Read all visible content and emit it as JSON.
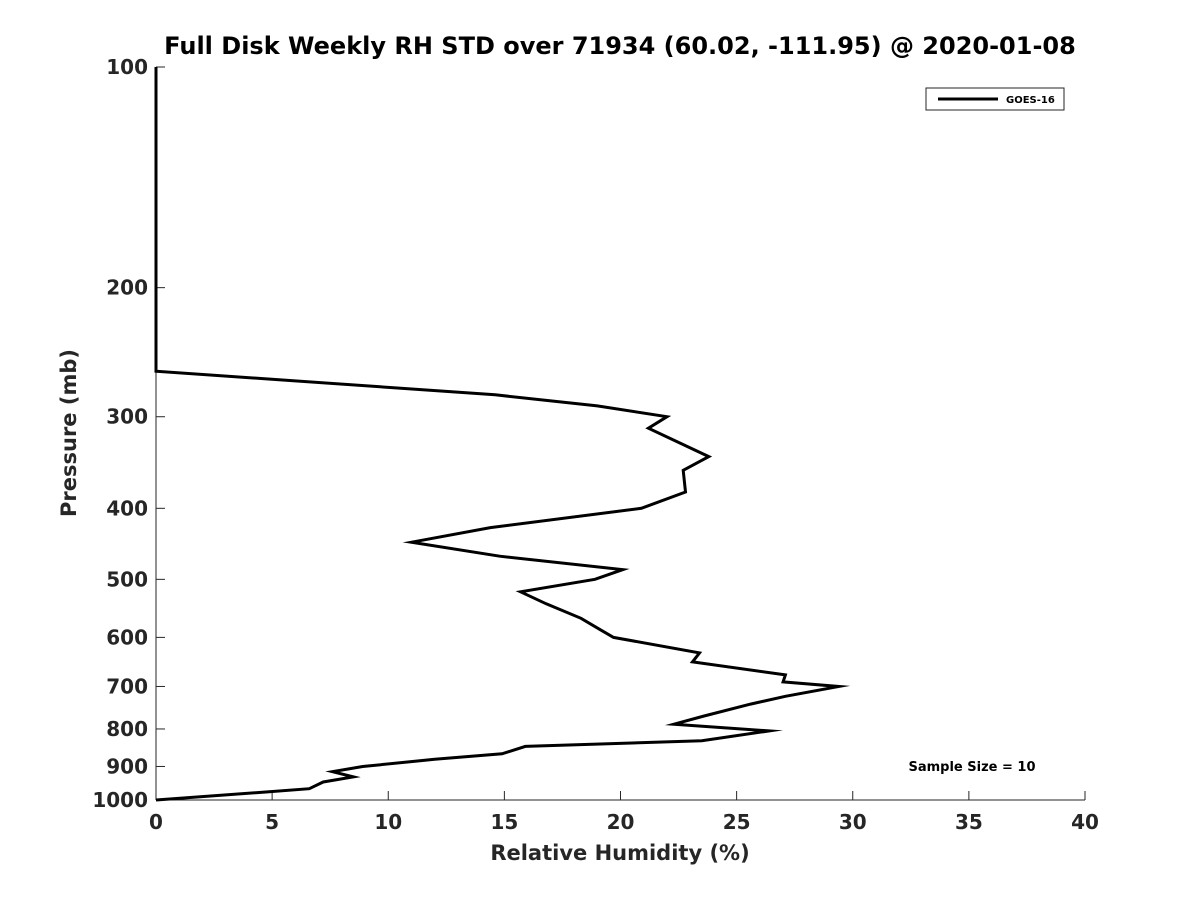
{
  "chart_data": {
    "type": "line",
    "title": "Full Disk Weekly RH STD over 71934 (60.02, -111.95) @ 2020-01-08",
    "xlabel": "Relative Humidity (%)",
    "ylabel": "Pressure (mb)",
    "xlim": [
      0,
      40
    ],
    "ylim": [
      100,
      1000
    ],
    "y_scale": "log",
    "y_inverted": true,
    "x_ticks": [
      "0",
      "5",
      "10",
      "15",
      "20",
      "25",
      "30",
      "35",
      "40"
    ],
    "y_ticks": [
      "100",
      "200",
      "300",
      "400",
      "500",
      "600",
      "700",
      "800",
      "900",
      "1000"
    ],
    "grid": false,
    "legend_position": "top-right",
    "series": [
      {
        "name": "GOES-16",
        "color": "#000000",
        "points": [
          [
            0,
            100
          ],
          [
            0,
            200
          ],
          [
            0,
            260
          ],
          [
            14.6,
            280
          ],
          [
            19.0,
            290
          ],
          [
            22.0,
            300
          ],
          [
            21.2,
            311
          ],
          [
            23.8,
            340
          ],
          [
            22.7,
            355
          ],
          [
            22.8,
            380
          ],
          [
            20.9,
            400
          ],
          [
            14.4,
            425
          ],
          [
            11.0,
            445
          ],
          [
            14.8,
            465
          ],
          [
            20.1,
            485
          ],
          [
            18.9,
            500
          ],
          [
            15.7,
            520
          ],
          [
            16.8,
            540
          ],
          [
            18.3,
            565
          ],
          [
            19.1,
            585
          ],
          [
            19.7,
            600
          ],
          [
            23.4,
            630
          ],
          [
            23.1,
            648
          ],
          [
            27.1,
            675
          ],
          [
            27.0,
            690
          ],
          [
            29.4,
            700
          ],
          [
            27.1,
            722
          ],
          [
            25.6,
            740
          ],
          [
            23.6,
            768
          ],
          [
            22.3,
            788
          ],
          [
            26.4,
            805
          ],
          [
            23.5,
            830
          ],
          [
            15.9,
            845
          ],
          [
            14.9,
            865
          ],
          [
            12.0,
            880
          ],
          [
            8.9,
            900
          ],
          [
            7.6,
            915
          ],
          [
            8.5,
            930
          ],
          [
            7.2,
            945
          ],
          [
            6.6,
            965
          ],
          [
            4.8,
            975
          ],
          [
            0,
            1000
          ]
        ]
      }
    ],
    "annotations": [
      "Sample Size = 10"
    ]
  }
}
